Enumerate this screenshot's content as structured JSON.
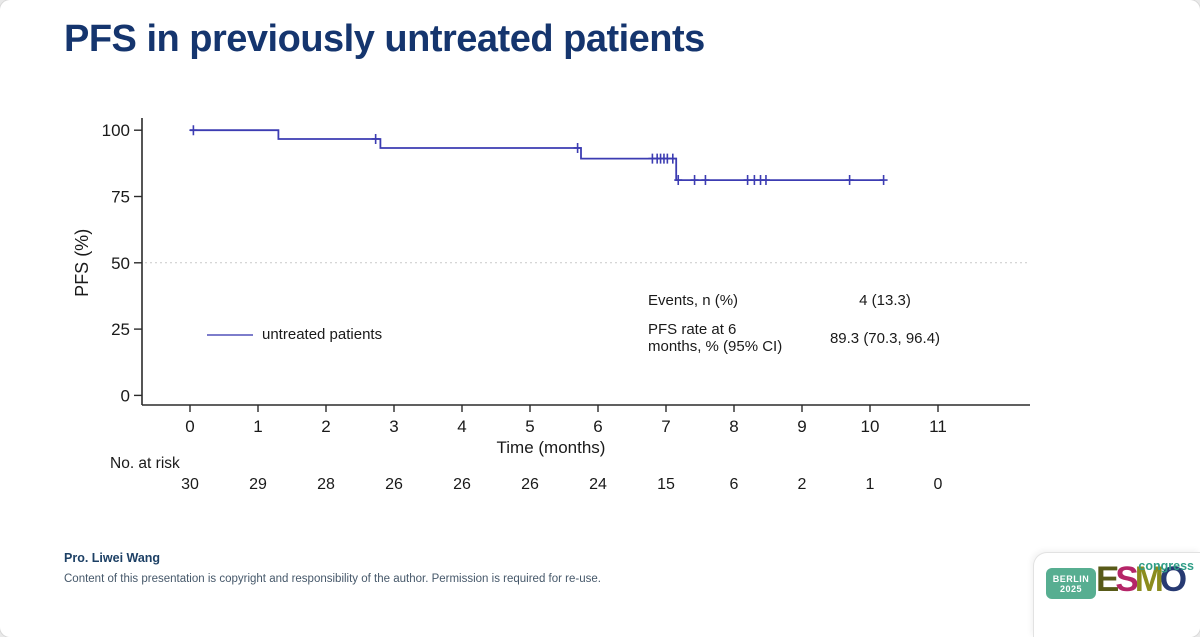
{
  "slide": {
    "title": "PFS in previously untreated patients",
    "footer": {
      "author": "Pro. Liwei Wang",
      "copyright": "Content of this presentation is copyright and responsibility of the author. Permission is required for re-use."
    },
    "logo": {
      "venue_line1": "BERLIN",
      "venue_line2": "2025",
      "badge_color": "#57ae91",
      "letters": [
        {
          "ch": "E",
          "color": "#585a18"
        },
        {
          "ch": "S",
          "color": "#b52568"
        },
        {
          "ch": "M",
          "color": "#8b8c1e"
        },
        {
          "ch": "O",
          "color": "#273a72"
        }
      ],
      "suffix": "congress",
      "suffix_color": "#2f9e87"
    }
  },
  "chart_data": {
    "type": "line",
    "subtype": "kaplan-meier-step",
    "title": "",
    "xlabel": "Time (months)",
    "ylabel": "PFS (%)",
    "xlim": [
      0,
      12.2
    ],
    "ylim": [
      0,
      100
    ],
    "x_ticks": [
      0,
      1,
      2,
      3,
      4,
      5,
      6,
      7,
      8,
      9,
      10,
      11
    ],
    "y_ticks": [
      0,
      25,
      50,
      75,
      100
    ],
    "reference_line_y": 50,
    "grid": "off",
    "legend": {
      "label": "untreated patients",
      "position": "inside-left"
    },
    "series": [
      {
        "name": "untreated patients",
        "color": "#3c3cb2",
        "step_points": [
          [
            0,
            100
          ],
          [
            1.3,
            100
          ],
          [
            1.3,
            96.7
          ],
          [
            2.8,
            96.7
          ],
          [
            2.8,
            93.3
          ],
          [
            5.75,
            93.3
          ],
          [
            5.75,
            89.3
          ],
          [
            7.15,
            89.3
          ],
          [
            7.15,
            81.2
          ],
          [
            10.2,
            81.2
          ]
        ],
        "censor_marks": [
          [
            0.05,
            100
          ],
          [
            2.73,
            96.7
          ],
          [
            5.7,
            93.3
          ],
          [
            6.8,
            89.3
          ],
          [
            6.87,
            89.3
          ],
          [
            6.92,
            89.3
          ],
          [
            6.97,
            89.3
          ],
          [
            7.02,
            89.3
          ],
          [
            7.1,
            89.3
          ],
          [
            7.18,
            81.2
          ],
          [
            7.42,
            81.2
          ],
          [
            7.58,
            81.2
          ],
          [
            8.2,
            81.2
          ],
          [
            8.3,
            81.2
          ],
          [
            8.39,
            81.2
          ],
          [
            8.47,
            81.2
          ],
          [
            9.7,
            81.2
          ],
          [
            10.2,
            81.2
          ]
        ]
      }
    ],
    "at_risk": {
      "label": "No. at risk",
      "times": [
        0,
        1,
        2,
        3,
        4,
        5,
        6,
        7,
        8,
        9,
        10,
        11
      ],
      "counts": [
        30,
        29,
        28,
        26,
        26,
        26,
        24,
        15,
        6,
        2,
        1,
        0
      ]
    },
    "stats_table": {
      "rows": [
        {
          "label_line1": "Events, n (%)",
          "label_line2": "",
          "value": "4 (13.3)"
        },
        {
          "label_line1": "PFS rate at 6",
          "label_line2": "months, % (95% CI)",
          "value": "89.3 (70.3, 96.4)"
        }
      ]
    }
  }
}
